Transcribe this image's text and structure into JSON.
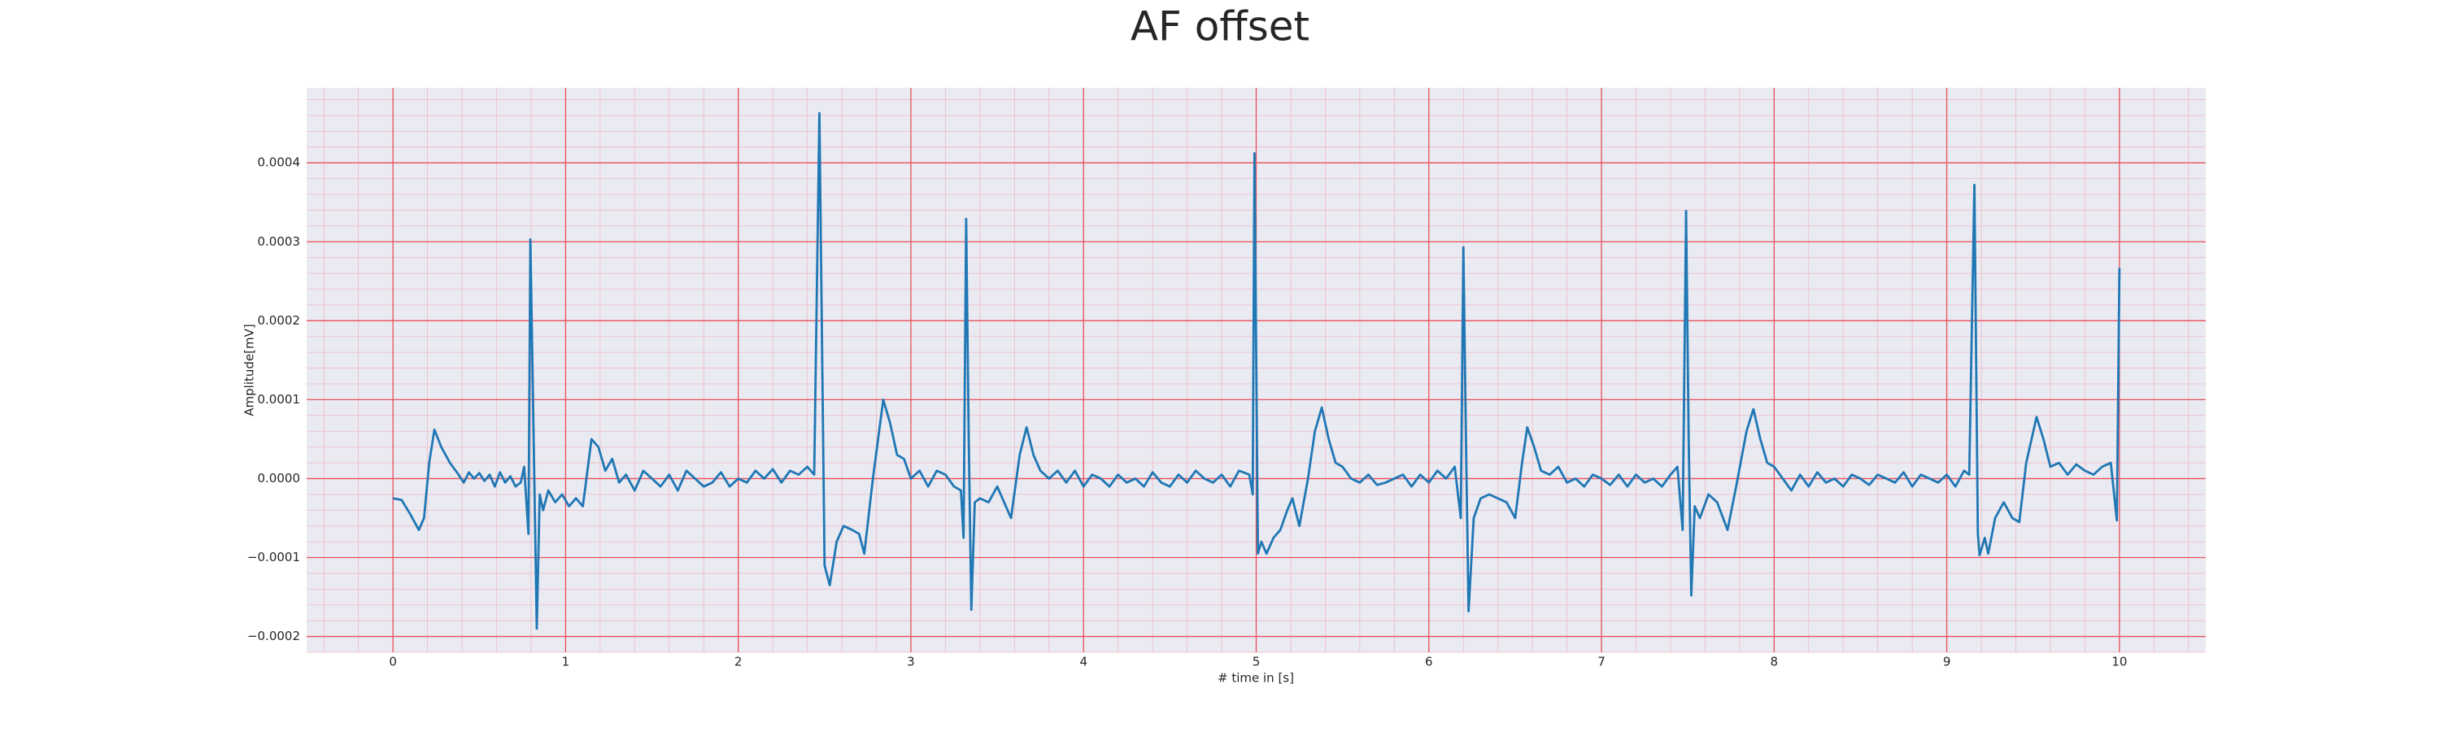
{
  "chart_data": {
    "type": "line",
    "title": "AF offset",
    "xlabel": "# time in [s]",
    "ylabel": "Amplitude[mV]",
    "color": "#1f77b4",
    "grid": true,
    "grid_color": "#e8505b",
    "minor_grid": true,
    "minor_grid_color": "#f2a6ae",
    "background": "#eaeaf2",
    "xlim": [
      -0.5,
      10.5
    ],
    "ylim": [
      -0.00022,
      0.000495
    ],
    "xticks": [
      0,
      1,
      2,
      3,
      4,
      5,
      6,
      7,
      8,
      9,
      10
    ],
    "yticks": [
      {
        "value": -0.0002,
        "label": "−0.0002"
      },
      {
        "value": -0.0001,
        "label": "−0.0001"
      },
      {
        "value": 0,
        "label": "0.0000"
      },
      {
        "value": 0.0001,
        "label": "0.0001"
      },
      {
        "value": 0.0002,
        "label": "0.0002"
      },
      {
        "value": 0.0003,
        "label": "0.0003"
      },
      {
        "value": 0.0004,
        "label": "0.0004"
      }
    ],
    "x": [
      0.0,
      0.05,
      0.1,
      0.15,
      0.18,
      0.21,
      0.24,
      0.28,
      0.33,
      0.38,
      0.41,
      0.44,
      0.47,
      0.5,
      0.53,
      0.56,
      0.59,
      0.62,
      0.65,
      0.68,
      0.71,
      0.74,
      0.76,
      0.785,
      0.796,
      0.815,
      0.833,
      0.85,
      0.87,
      0.9,
      0.94,
      0.98,
      1.02,
      1.06,
      1.1,
      1.15,
      1.19,
      1.23,
      1.27,
      1.31,
      1.35,
      1.4,
      1.45,
      1.5,
      1.55,
      1.6,
      1.65,
      1.7,
      1.75,
      1.8,
      1.85,
      1.9,
      1.95,
      2.0,
      2.05,
      2.1,
      2.15,
      2.2,
      2.25,
      2.3,
      2.35,
      2.4,
      2.44,
      2.47,
      2.5,
      2.53,
      2.57,
      2.61,
      2.66,
      2.7,
      2.73,
      2.78,
      2.84,
      2.88,
      2.92,
      2.96,
      3.0,
      3.05,
      3.1,
      3.15,
      3.2,
      3.25,
      3.29,
      3.305,
      3.32,
      3.335,
      3.35,
      3.37,
      3.4,
      3.45,
      3.5,
      3.54,
      3.58,
      3.63,
      3.67,
      3.71,
      3.75,
      3.8,
      3.85,
      3.9,
      3.95,
      4.0,
      4.05,
      4.1,
      4.15,
      4.2,
      4.25,
      4.3,
      4.35,
      4.4,
      4.45,
      4.5,
      4.55,
      4.6,
      4.65,
      4.7,
      4.75,
      4.8,
      4.85,
      4.9,
      4.96,
      4.98,
      4.99,
      5.01,
      5.03,
      5.06,
      5.1,
      5.14,
      5.18,
      5.21,
      5.25,
      5.3,
      5.34,
      5.38,
      5.42,
      5.46,
      5.5,
      5.55,
      5.6,
      5.65,
      5.7,
      5.75,
      5.8,
      5.85,
      5.9,
      5.95,
      6.0,
      6.05,
      6.1,
      6.15,
      6.185,
      6.2,
      6.215,
      6.23,
      6.26,
      6.3,
      6.35,
      6.4,
      6.45,
      6.5,
      6.54,
      6.57,
      6.61,
      6.65,
      6.7,
      6.75,
      6.8,
      6.85,
      6.9,
      6.95,
      7.0,
      7.05,
      7.1,
      7.15,
      7.2,
      7.25,
      7.3,
      7.35,
      7.4,
      7.44,
      7.47,
      7.49,
      7.505,
      7.52,
      7.54,
      7.57,
      7.62,
      7.67,
      7.73,
      7.78,
      7.84,
      7.88,
      7.92,
      7.96,
      8.0,
      8.05,
      8.1,
      8.15,
      8.2,
      8.25,
      8.3,
      8.35,
      8.4,
      8.45,
      8.5,
      8.55,
      8.6,
      8.65,
      8.7,
      8.75,
      8.8,
      8.85,
      8.9,
      8.95,
      9.0,
      9.05,
      9.1,
      9.13,
      9.16,
      9.18,
      9.19,
      9.22,
      9.24,
      9.28,
      9.33,
      9.38,
      9.42,
      9.46,
      9.52,
      9.56,
      9.6,
      9.65,
      9.7,
      9.75,
      9.8,
      9.85,
      9.9,
      9.95,
      9.985,
      10.0
    ],
    "values": [
      -2.5e-05,
      -2.7e-05,
      -4.5e-05,
      -6.5e-05,
      -5e-05,
      2e-05,
      6.2e-05,
      4e-05,
      2e-05,
      5e-06,
      -5e-06,
      8e-06,
      0,
      7e-06,
      -3e-06,
      5e-06,
      -1e-05,
      8e-06,
      -5e-06,
      3e-06,
      -1e-05,
      -5e-06,
      1.5e-05,
      -7e-05,
      0.000303,
      5e-05,
      -0.00019,
      -2e-05,
      -4e-05,
      -1.5e-05,
      -3e-05,
      -2e-05,
      -3.5e-05,
      -2.5e-05,
      -3.5e-05,
      5e-05,
      4e-05,
      1e-05,
      2.5e-05,
      -5e-06,
      5e-06,
      -1.5e-05,
      1e-05,
      0,
      -1e-05,
      5e-06,
      -1.5e-05,
      1e-05,
      0,
      -1e-05,
      -5e-06,
      8e-06,
      -1e-05,
      0,
      -5e-06,
      1e-05,
      0,
      1.2e-05,
      -5e-06,
      1e-05,
      5e-06,
      1.5e-05,
      5e-06,
      0.000463,
      -0.00011,
      -0.000135,
      -8e-05,
      -6e-05,
      -6.5e-05,
      -7e-05,
      -9.5e-05,
      0,
      0.0001,
      7e-05,
      3e-05,
      2.5e-05,
      0,
      1e-05,
      -1e-05,
      1e-05,
      5e-06,
      -1e-05,
      -1.5e-05,
      -7.5e-05,
      0.000329,
      5e-05,
      -0.000166,
      -3e-05,
      -2.5e-05,
      -3e-05,
      -1e-05,
      -3e-05,
      -5e-05,
      3e-05,
      6.5e-05,
      3e-05,
      1e-05,
      0,
      1e-05,
      -5e-06,
      1e-05,
      -1e-05,
      5e-06,
      0,
      -1e-05,
      5e-06,
      -5e-06,
      0,
      -1e-05,
      8e-06,
      -5e-06,
      -1e-05,
      5e-06,
      -5e-06,
      1e-05,
      0,
      -5e-06,
      5e-06,
      -1e-05,
      1e-05,
      5e-06,
      -2e-05,
      0.000412,
      -9.5e-05,
      -8e-05,
      -9.5e-05,
      -7.5e-05,
      -6.5e-05,
      -4e-05,
      -2.5e-05,
      -6e-05,
      0,
      6e-05,
      9e-05,
      5e-05,
      2e-05,
      1.5e-05,
      0,
      -5e-06,
      5e-06,
      -8e-06,
      -5e-06,
      0,
      5e-06,
      -1e-05,
      5e-06,
      -5e-06,
      1e-05,
      0,
      1.5e-05,
      -5e-05,
      0.000293,
      5e-05,
      -0.000168,
      -5e-05,
      -2.5e-05,
      -2e-05,
      -2.5e-05,
      -3e-05,
      -5e-05,
      2e-05,
      6.5e-05,
      4e-05,
      1e-05,
      5e-06,
      1.5e-05,
      -5e-06,
      0,
      -1e-05,
      5e-06,
      0,
      -8e-06,
      5e-06,
      -1e-05,
      5e-06,
      -5e-06,
      0,
      -1e-05,
      5e-06,
      1.5e-05,
      -6.5e-05,
      0.000339,
      5e-05,
      -0.000148,
      -3.5e-05,
      -5e-05,
      -2e-05,
      -3e-05,
      -6.5e-05,
      -1e-05,
      6e-05,
      8.8e-05,
      5e-05,
      2e-05,
      1.5e-05,
      0,
      -1.5e-05,
      5e-06,
      -1e-05,
      8e-06,
      -5e-06,
      0,
      -1e-05,
      5e-06,
      0,
      -8e-06,
      5e-06,
      0,
      -5e-06,
      8e-06,
      -1e-05,
      5e-06,
      0,
      -5e-06,
      5e-06,
      -1e-05,
      1e-05,
      5e-06,
      0.000372,
      -7e-05,
      -9.7e-05,
      -7.5e-05,
      -9.5e-05,
      -5e-05,
      -3e-05,
      -5e-05,
      -5.5e-05,
      2e-05,
      7.8e-05,
      5e-05,
      1.5e-05,
      2e-05,
      5e-06,
      1.8e-05,
      1e-05,
      5e-06,
      1.5e-05,
      2e-05,
      -5.3e-05,
      0.000267
    ]
  }
}
